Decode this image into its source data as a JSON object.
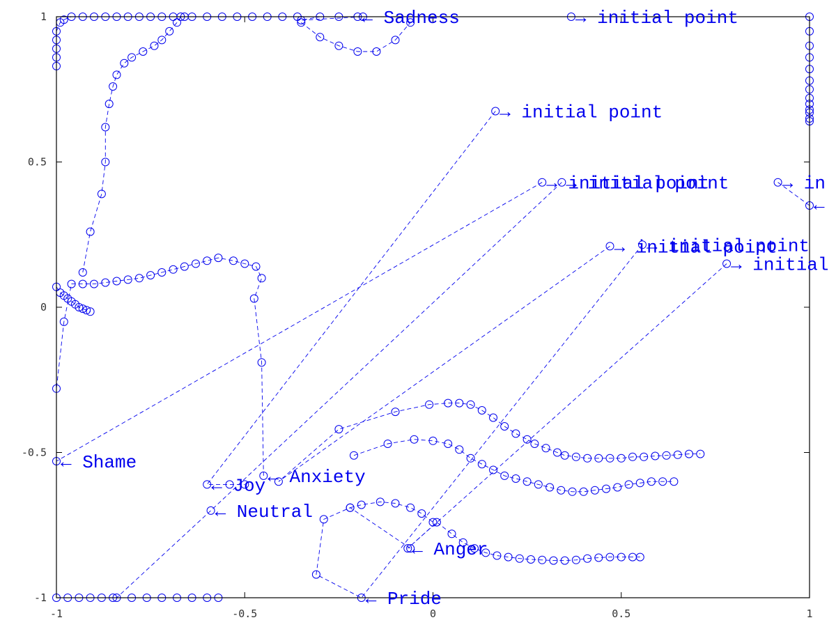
{
  "chart_data": {
    "type": "scatter",
    "title": "",
    "xlabel": "",
    "ylabel": "",
    "xlim": [
      -1,
      1
    ],
    "ylim": [
      -1,
      1
    ],
    "grid": false,
    "xticks": [
      -1,
      -0.5,
      0,
      0.5,
      1
    ],
    "yticks": [
      -1,
      -0.5,
      0,
      0.5,
      1
    ],
    "xtick_labels": [
      "-1",
      "-0.5",
      "0",
      "0.5",
      "1"
    ],
    "ytick_labels": [
      "-1",
      "-0.5",
      "0",
      "0.5",
      "1"
    ],
    "color": "#0000ee",
    "series": [
      {
        "points": [
          [
            0.916,
            0.43
          ],
          [
            1,
            0.35
          ],
          [
            1,
            0.64
          ],
          [
            1,
            0.65
          ],
          [
            1,
            0.67
          ],
          [
            1,
            0.68
          ],
          [
            1,
            0.7
          ],
          [
            1,
            0.72
          ],
          [
            1,
            0.75
          ],
          [
            1,
            0.78
          ],
          [
            1,
            0.82
          ],
          [
            1,
            0.86
          ],
          [
            1,
            0.9
          ],
          [
            1,
            0.95
          ],
          [
            1,
            1
          ],
          [
            0.367,
            1
          ],
          [
            -0.186,
            1
          ],
          [
            -0.35,
            0.988
          ],
          [
            -0.3,
            1
          ],
          [
            -0.25,
            1
          ],
          [
            -0.2,
            1
          ]
        ]
      },
      {
        "points": [
          [
            0.166,
            0.675
          ],
          [
            -0.6,
            -0.61
          ],
          [
            -0.54,
            -0.61
          ],
          [
            -0.5,
            -0.61
          ]
        ]
      },
      {
        "points": [
          [
            0.29,
            0.43
          ],
          [
            -1,
            -0.53
          ],
          [
            -1,
            -0.28
          ],
          [
            -0.98,
            -0.05
          ],
          [
            -0.96,
            0.08
          ],
          [
            -0.93,
            0.08
          ],
          [
            -0.9,
            0.08
          ],
          [
            -0.87,
            0.085
          ],
          [
            -0.84,
            0.09
          ],
          [
            -0.81,
            0.095
          ],
          [
            -0.78,
            0.1
          ],
          [
            -0.75,
            0.11
          ],
          [
            -0.72,
            0.12
          ],
          [
            -0.69,
            0.13
          ],
          [
            -0.66,
            0.14
          ],
          [
            -0.63,
            0.15
          ],
          [
            -0.6,
            0.16
          ],
          [
            -0.57,
            0.17
          ],
          [
            -0.53,
            0.16
          ],
          [
            -0.5,
            0.15
          ],
          [
            -0.47,
            0.14
          ],
          [
            -0.455,
            0.1
          ],
          [
            -0.475,
            0.03
          ],
          [
            -0.455,
            -0.19
          ],
          [
            -0.45,
            -0.58
          ]
        ]
      },
      {
        "points": [
          [
            0.342,
            0.43
          ],
          [
            -0.59,
            -0.7
          ],
          [
            -0.84,
            -1
          ],
          [
            -0.8,
            -1
          ],
          [
            -0.76,
            -1
          ],
          [
            -0.72,
            -1
          ],
          [
            -0.68,
            -1
          ],
          [
            -0.64,
            -1
          ],
          [
            -0.6,
            -1
          ],
          [
            -0.57,
            -1
          ]
        ]
      },
      {
        "points": [
          [
            0.47,
            0.21
          ],
          [
            -0.41,
            -0.6
          ],
          [
            -0.25,
            -0.42
          ],
          [
            -0.1,
            -0.36
          ],
          [
            -0.01,
            -0.335
          ],
          [
            0.04,
            -0.33
          ],
          [
            0.07,
            -0.33
          ],
          [
            0.1,
            -0.335
          ],
          [
            0.13,
            -0.355
          ],
          [
            0.16,
            -0.38
          ],
          [
            0.19,
            -0.41
          ],
          [
            0.22,
            -0.435
          ],
          [
            0.25,
            -0.455
          ],
          [
            0.27,
            -0.47
          ],
          [
            0.3,
            -0.485
          ],
          [
            0.33,
            -0.5
          ],
          [
            0.35,
            -0.51
          ],
          [
            0.38,
            -0.515
          ],
          [
            0.41,
            -0.52
          ],
          [
            0.44,
            -0.52
          ],
          [
            0.47,
            -0.52
          ],
          [
            0.5,
            -0.52
          ],
          [
            0.53,
            -0.515
          ],
          [
            0.56,
            -0.515
          ],
          [
            0.59,
            -0.512
          ],
          [
            0.62,
            -0.51
          ],
          [
            0.65,
            -0.508
          ],
          [
            0.68,
            -0.505
          ],
          [
            0.71,
            -0.505
          ]
        ]
      },
      {
        "points": [
          [
            0.556,
            0.215
          ],
          [
            -0.19,
            -1
          ],
          [
            -0.31,
            -0.92
          ],
          [
            -0.29,
            -0.73
          ],
          [
            -0.22,
            -0.69
          ],
          [
            -0.06,
            -0.83
          ]
        ]
      },
      {
        "points": [
          [
            0.78,
            0.15
          ],
          [
            -0.067,
            -0.83
          ],
          [
            0.01,
            -0.74
          ],
          [
            0.05,
            -0.78
          ],
          [
            0.08,
            -0.81
          ],
          [
            0.11,
            -0.83
          ],
          [
            0.14,
            -0.845
          ],
          [
            0.17,
            -0.855
          ],
          [
            0.2,
            -0.86
          ],
          [
            0.23,
            -0.865
          ],
          [
            0.26,
            -0.868
          ],
          [
            0.29,
            -0.87
          ],
          [
            0.32,
            -0.872
          ],
          [
            0.35,
            -0.872
          ],
          [
            0.38,
            -0.87
          ],
          [
            0.41,
            -0.865
          ],
          [
            0.44,
            -0.862
          ],
          [
            0.47,
            -0.86
          ],
          [
            0.5,
            -0.86
          ],
          [
            0.53,
            -0.86
          ],
          [
            0.55,
            -0.86
          ]
        ]
      },
      {
        "points": [
          [
            -0.21,
            -0.51
          ],
          [
            -0.12,
            -0.47
          ],
          [
            -0.05,
            -0.455
          ],
          [
            0.0,
            -0.46
          ],
          [
            0.04,
            -0.47
          ],
          [
            0.07,
            -0.49
          ],
          [
            0.1,
            -0.52
          ],
          [
            0.13,
            -0.54
          ],
          [
            0.16,
            -0.56
          ],
          [
            0.19,
            -0.58
          ],
          [
            0.22,
            -0.59
          ],
          [
            0.25,
            -0.6
          ],
          [
            0.28,
            -0.61
          ],
          [
            0.31,
            -0.62
          ],
          [
            0.34,
            -0.63
          ],
          [
            0.37,
            -0.635
          ],
          [
            0.4,
            -0.635
          ],
          [
            0.43,
            -0.63
          ],
          [
            0.46,
            -0.625
          ],
          [
            0.49,
            -0.62
          ],
          [
            0.52,
            -0.61
          ],
          [
            0.55,
            -0.605
          ],
          [
            0.58,
            -0.6
          ],
          [
            0.61,
            -0.6
          ],
          [
            0.64,
            -0.6
          ]
        ]
      },
      {
        "points": [
          [
            -0.22,
            -0.69
          ],
          [
            -0.19,
            -0.68
          ],
          [
            -0.14,
            -0.67
          ],
          [
            -0.1,
            -0.675
          ],
          [
            -0.06,
            -0.69
          ],
          [
            -0.03,
            -0.71
          ],
          [
            0.0,
            -0.74
          ]
        ]
      },
      {
        "points": [
          [
            -1,
            0.83
          ],
          [
            -1,
            0.86
          ],
          [
            -1,
            0.89
          ],
          [
            -1,
            0.92
          ],
          [
            -1,
            0.95
          ],
          [
            -0.99,
            0.98
          ],
          [
            -0.98,
            0.99
          ],
          [
            -0.96,
            1
          ],
          [
            -0.93,
            1
          ],
          [
            -0.9,
            1
          ],
          [
            -0.87,
            1
          ],
          [
            -0.84,
            1
          ],
          [
            -0.81,
            1
          ],
          [
            -0.78,
            1
          ],
          [
            -0.75,
            1
          ],
          [
            -0.72,
            1
          ],
          [
            -0.69,
            1
          ],
          [
            -0.66,
            1
          ],
          [
            -0.64,
            1
          ],
          [
            -0.6,
            1
          ],
          [
            -0.56,
            1
          ],
          [
            -0.52,
            1
          ],
          [
            -0.48,
            1
          ],
          [
            -0.44,
            1
          ],
          [
            -0.4,
            1
          ],
          [
            -0.36,
            1
          ]
        ]
      },
      {
        "points": [
          [
            -0.93,
            0.12
          ],
          [
            -0.91,
            0.26
          ],
          [
            -0.88,
            0.39
          ],
          [
            -0.87,
            0.5
          ],
          [
            -0.87,
            0.62
          ],
          [
            -0.86,
            0.7
          ],
          [
            -0.85,
            0.76
          ],
          [
            -0.84,
            0.8
          ],
          [
            -0.82,
            0.84
          ],
          [
            -0.8,
            0.86
          ],
          [
            -0.77,
            0.88
          ],
          [
            -0.74,
            0.9
          ],
          [
            -0.72,
            0.92
          ],
          [
            -0.7,
            0.95
          ],
          [
            -0.68,
            0.98
          ],
          [
            -0.67,
            1
          ]
        ]
      },
      {
        "points": [
          [
            -0.35,
            0.98
          ],
          [
            -0.3,
            0.93
          ],
          [
            -0.25,
            0.9
          ],
          [
            -0.2,
            0.88
          ],
          [
            -0.15,
            0.88
          ],
          [
            -0.1,
            0.92
          ],
          [
            -0.06,
            0.98
          ]
        ]
      },
      {
        "points": [
          [
            -1,
            0.07
          ],
          [
            -0.99,
            0.05
          ],
          [
            -0.98,
            0.04
          ],
          [
            -0.97,
            0.03
          ],
          [
            -0.96,
            0.02
          ],
          [
            -0.95,
            0.01
          ],
          [
            -0.94,
            0.0
          ],
          [
            -0.93,
            -0.005
          ],
          [
            -0.92,
            -0.01
          ],
          [
            -0.91,
            -0.015
          ]
        ]
      },
      {
        "points": [
          [
            -1,
            -1
          ],
          [
            -0.97,
            -1
          ],
          [
            -0.94,
            -1
          ],
          [
            -0.91,
            -1
          ],
          [
            -0.88,
            -1
          ],
          [
            -0.85,
            -1
          ]
        ]
      }
    ],
    "annotations": [
      {
        "text": "← Sadness",
        "x": -0.2,
        "y": 1
      },
      {
        "text": "→ initial point",
        "x": 0.367,
        "y": 1
      },
      {
        "text": "→ initial point",
        "x": 0.166,
        "y": 0.675
      },
      {
        "text": "→ initial point",
        "x": 0.342,
        "y": 0.43
      },
      {
        "text": "→ initial point",
        "x": 0.29,
        "y": 0.43
      },
      {
        "text": "→ in",
        "x": 0.916,
        "y": 0.43
      },
      {
        "text": "←",
        "x": 1,
        "y": 0.355
      },
      {
        "text": "→ initial point",
        "x": 0.556,
        "y": 0.215
      },
      {
        "text": "→ initial point",
        "x": 0.47,
        "y": 0.21
      },
      {
        "text": "→ initial",
        "x": 0.78,
        "y": 0.15
      },
      {
        "text": "← Shame",
        "x": -1,
        "y": -0.53
      },
      {
        "text": "← Anxiety",
        "x": -0.45,
        "y": -0.58
      },
      {
        "text": "← Joy",
        "x": -0.6,
        "y": -0.61
      },
      {
        "text": "← Neutral",
        "x": -0.59,
        "y": -0.7
      },
      {
        "text": "← Anger",
        "x": -0.067,
        "y": -0.83
      },
      {
        "text": "← Pride",
        "x": -0.19,
        "y": -1
      }
    ]
  }
}
